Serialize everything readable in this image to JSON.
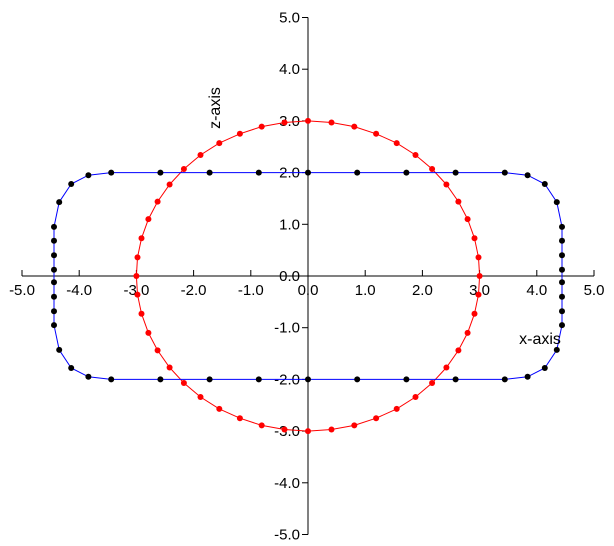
{
  "chart_data": {
    "type": "scatter",
    "xlabel": "x-axis",
    "ylabel": "z-axis",
    "xlim": [
      -5.0,
      5.0
    ],
    "ylim": [
      -5.0,
      5.0
    ],
    "x_ticks": [
      "-5.0",
      "-4.0",
      "-3.0",
      "-2.0",
      "-1.0",
      "0.0",
      "1.0",
      "2.0",
      "3.0",
      "4.0",
      "5.0"
    ],
    "y_ticks": [
      "-5.0",
      "-4.0",
      "-3.0",
      "-2.0",
      "-1.0",
      "0.0",
      "1.0",
      "2.0",
      "3.0",
      "4.0",
      "5.0"
    ],
    "x_tick_values": [
      -5,
      -4,
      -3,
      -2,
      -1,
      0,
      1,
      2,
      3,
      4,
      5
    ],
    "y_tick_values": [
      -5,
      -4,
      -3,
      -2,
      -1,
      0,
      1,
      2,
      3,
      4,
      5
    ],
    "grid": false,
    "series": [
      {
        "color": "#ff0000",
        "marker_color": "#ff0000",
        "closed": true,
        "points": [
          [
            0.0,
            3.0
          ],
          [
            0.41,
            2.97
          ],
          [
            0.81,
            2.89
          ],
          [
            1.19,
            2.75
          ],
          [
            1.55,
            2.57
          ],
          [
            1.88,
            2.34
          ],
          [
            2.17,
            2.07
          ],
          [
            2.42,
            1.77
          ],
          [
            2.63,
            1.44
          ],
          [
            2.79,
            1.1
          ],
          [
            2.91,
            0.73
          ],
          [
            2.98,
            0.36
          ],
          [
            3.0,
            0.0
          ],
          [
            2.98,
            -0.36
          ],
          [
            2.91,
            -0.73
          ],
          [
            2.79,
            -1.1
          ],
          [
            2.63,
            -1.44
          ],
          [
            2.42,
            -1.77
          ],
          [
            2.17,
            -2.07
          ],
          [
            1.88,
            -2.34
          ],
          [
            1.55,
            -2.57
          ],
          [
            1.19,
            -2.75
          ],
          [
            0.81,
            -2.89
          ],
          [
            0.41,
            -2.97
          ],
          [
            0.0,
            -3.0
          ],
          [
            -0.41,
            -2.97
          ],
          [
            -0.81,
            -2.89
          ],
          [
            -1.19,
            -2.75
          ],
          [
            -1.55,
            -2.57
          ],
          [
            -1.88,
            -2.34
          ],
          [
            -2.17,
            -2.07
          ],
          [
            -2.42,
            -1.77
          ],
          [
            -2.63,
            -1.44
          ],
          [
            -2.79,
            -1.1
          ],
          [
            -2.91,
            -0.73
          ],
          [
            -2.98,
            -0.36
          ],
          [
            -3.0,
            0.0
          ],
          [
            -2.98,
            0.36
          ],
          [
            -2.91,
            0.73
          ],
          [
            -2.79,
            1.1
          ],
          [
            -2.63,
            1.44
          ],
          [
            -2.42,
            1.77
          ],
          [
            -2.17,
            2.07
          ],
          [
            -1.88,
            2.34
          ],
          [
            -1.55,
            2.57
          ],
          [
            -1.19,
            2.75
          ],
          [
            -0.81,
            2.89
          ],
          [
            -0.41,
            2.97
          ]
        ]
      },
      {
        "color": "#0000ff",
        "marker_color": "#000000",
        "closed": true,
        "points": [
          [
            -3.44,
            2.0
          ],
          [
            -2.58,
            2.0
          ],
          [
            -1.72,
            2.0
          ],
          [
            -0.86,
            2.0
          ],
          [
            0.0,
            2.0
          ],
          [
            0.86,
            2.0
          ],
          [
            1.72,
            2.0
          ],
          [
            2.58,
            2.0
          ],
          [
            3.44,
            2.0
          ],
          [
            3.84,
            1.95
          ],
          [
            4.14,
            1.78
          ],
          [
            4.35,
            1.43
          ],
          [
            4.44,
            0.95
          ],
          [
            4.44,
            0.68
          ],
          [
            4.44,
            0.4
          ],
          [
            4.44,
            0.12
          ],
          [
            4.44,
            -0.12
          ],
          [
            4.44,
            -0.4
          ],
          [
            4.44,
            -0.68
          ],
          [
            4.44,
            -0.95
          ],
          [
            4.35,
            -1.43
          ],
          [
            4.14,
            -1.78
          ],
          [
            3.84,
            -1.95
          ],
          [
            3.44,
            -2.0
          ],
          [
            2.58,
            -2.0
          ],
          [
            1.72,
            -2.0
          ],
          [
            0.86,
            -2.0
          ],
          [
            0.0,
            -2.0
          ],
          [
            -0.86,
            -2.0
          ],
          [
            -1.72,
            -2.0
          ],
          [
            -2.58,
            -2.0
          ],
          [
            -3.44,
            -2.0
          ],
          [
            -3.84,
            -1.95
          ],
          [
            -4.14,
            -1.78
          ],
          [
            -4.35,
            -1.43
          ],
          [
            -4.44,
            -0.95
          ],
          [
            -4.44,
            -0.68
          ],
          [
            -4.44,
            -0.4
          ],
          [
            -4.44,
            -0.12
          ],
          [
            -4.44,
            0.12
          ],
          [
            -4.44,
            0.4
          ],
          [
            -4.44,
            0.68
          ],
          [
            -4.44,
            0.95
          ],
          [
            -4.35,
            1.43
          ],
          [
            -4.14,
            1.78
          ],
          [
            -3.84,
            1.95
          ]
        ]
      }
    ]
  }
}
